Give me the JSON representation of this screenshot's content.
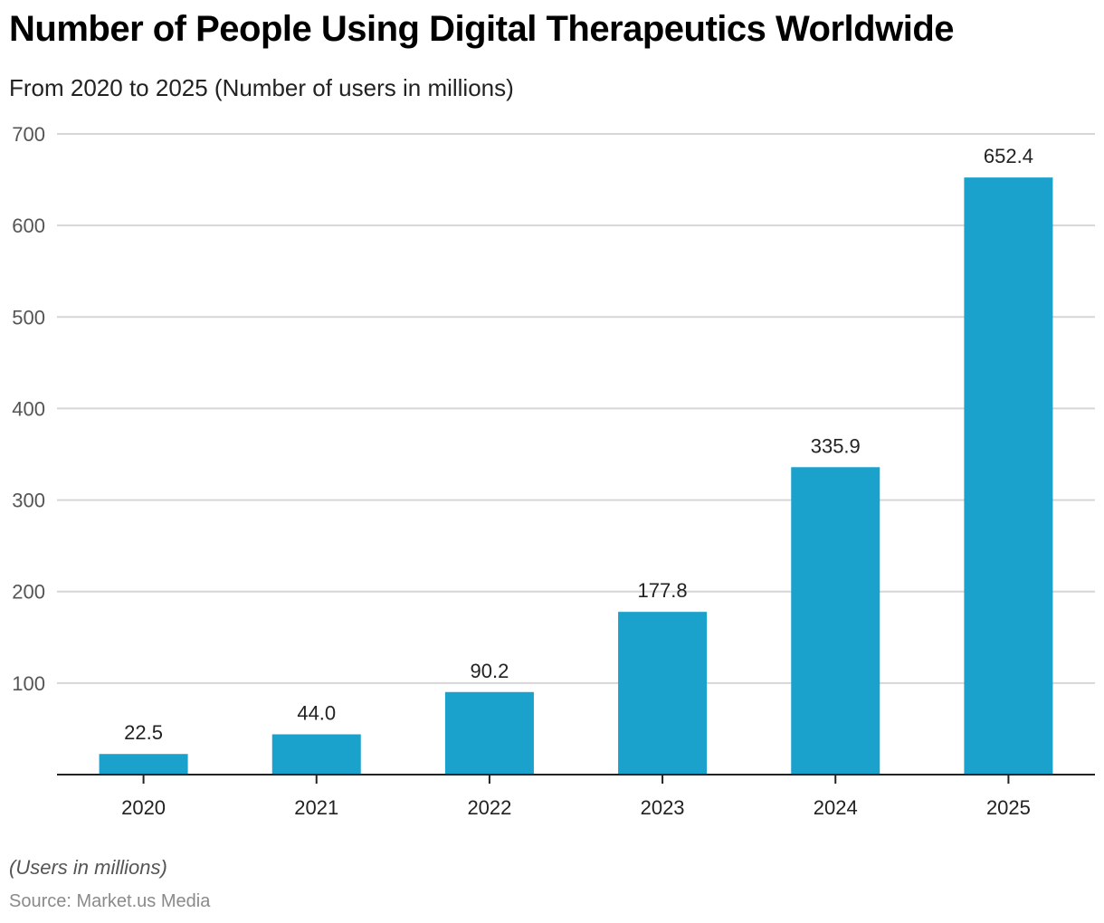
{
  "chart_data": {
    "type": "bar",
    "title": "Number of People Using Digital Therapeutics Worldwide",
    "subtitle": "From 2020 to 2025 (Number of users in millions)",
    "categories": [
      "2020",
      "2021",
      "2022",
      "2023",
      "2024",
      "2025"
    ],
    "values": [
      22.5,
      44.0,
      90.2,
      177.8,
      335.9,
      652.4
    ],
    "data_labels": [
      "22.5",
      "44.0",
      "90.2",
      "177.8",
      "335.9",
      "652.4"
    ],
    "xlabel": "",
    "ylabel": "",
    "ylim": [
      0,
      700
    ],
    "yticks": [
      100,
      200,
      300,
      400,
      500,
      600,
      700
    ],
    "grid": true,
    "legend": "none",
    "bar_color": "#1aa1cc",
    "footnote": "(Users in millions)",
    "source": "Source: Market.us Media"
  }
}
